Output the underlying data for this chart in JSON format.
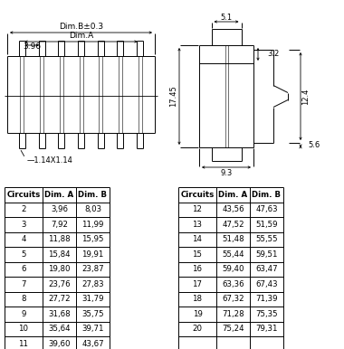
{
  "table1": {
    "headers": [
      "Circuits",
      "Dim. A",
      "Dim. B"
    ],
    "rows": [
      [
        "2",
        "3,96",
        "8,03"
      ],
      [
        "3",
        "7,92",
        "11,99"
      ],
      [
        "4",
        "11,88",
        "15,95"
      ],
      [
        "5",
        "15,84",
        "19,91"
      ],
      [
        "6",
        "19,80",
        "23,87"
      ],
      [
        "7",
        "23,76",
        "27,83"
      ],
      [
        "8",
        "27,72",
        "31,79"
      ],
      [
        "9",
        "31,68",
        "35,75"
      ],
      [
        "10",
        "35,64",
        "39,71"
      ],
      [
        "11",
        "39,60",
        "43,67"
      ]
    ]
  },
  "table2": {
    "headers": [
      "Circuits",
      "Dim. A",
      "Dim. B"
    ],
    "rows": [
      [
        "12",
        "43,56",
        "47,63"
      ],
      [
        "13",
        "47,52",
        "51,59"
      ],
      [
        "14",
        "51,48",
        "55,55"
      ],
      [
        "15",
        "55,44",
        "59,51"
      ],
      [
        "16",
        "59,40",
        "63,47"
      ],
      [
        "17",
        "63,36",
        "67,43"
      ],
      [
        "18",
        "67,32",
        "71,39"
      ],
      [
        "19",
        "71,28",
        "75,35"
      ],
      [
        "20",
        "75,24",
        "79,31"
      ],
      [
        "",
        "",
        ""
      ]
    ]
  },
  "bg_color": "#ffffff"
}
